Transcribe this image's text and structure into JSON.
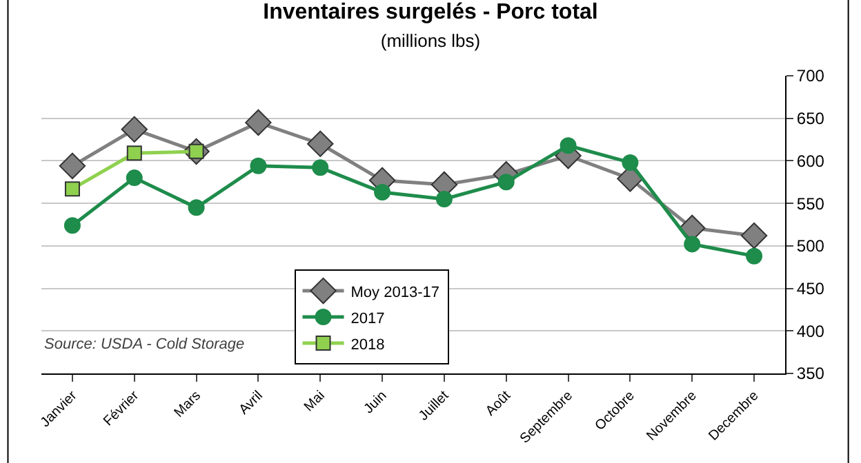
{
  "chart_data": {
    "type": "line",
    "title": "Inventaires surgelés - Porc total",
    "subtitle": "(millions lbs)",
    "categories": [
      "Janvier",
      "Février",
      "Mars",
      "Avril",
      "Mai",
      "Juin",
      "Juillet",
      "Août",
      "Septembre",
      "Octobre",
      "Novembre",
      "Decembre"
    ],
    "series": [
      {
        "name": "Moy 2013-17",
        "color": "#808080",
        "marker": "diamond",
        "values": [
          594,
          637,
          611,
          645,
          620,
          577,
          572,
          584,
          606,
          579,
          521,
          512
        ]
      },
      {
        "name": "2017",
        "color": "#1e8c4b",
        "marker": "circle",
        "values": [
          524,
          580,
          545,
          594,
          592,
          563,
          555,
          575,
          618,
          598,
          502,
          488
        ]
      },
      {
        "name": "2018",
        "color": "#8fd14f",
        "marker": "square",
        "values": [
          567,
          609,
          611,
          null,
          null,
          null,
          null,
          null,
          null,
          null,
          null,
          null
        ]
      }
    ],
    "ylim": [
      350,
      700
    ],
    "yticks": [
      350,
      400,
      450,
      500,
      550,
      600,
      650,
      700
    ],
    "grid": "y",
    "legend": "bottom left",
    "annotations": [
      "Source: USDA - Cold Storage"
    ]
  }
}
